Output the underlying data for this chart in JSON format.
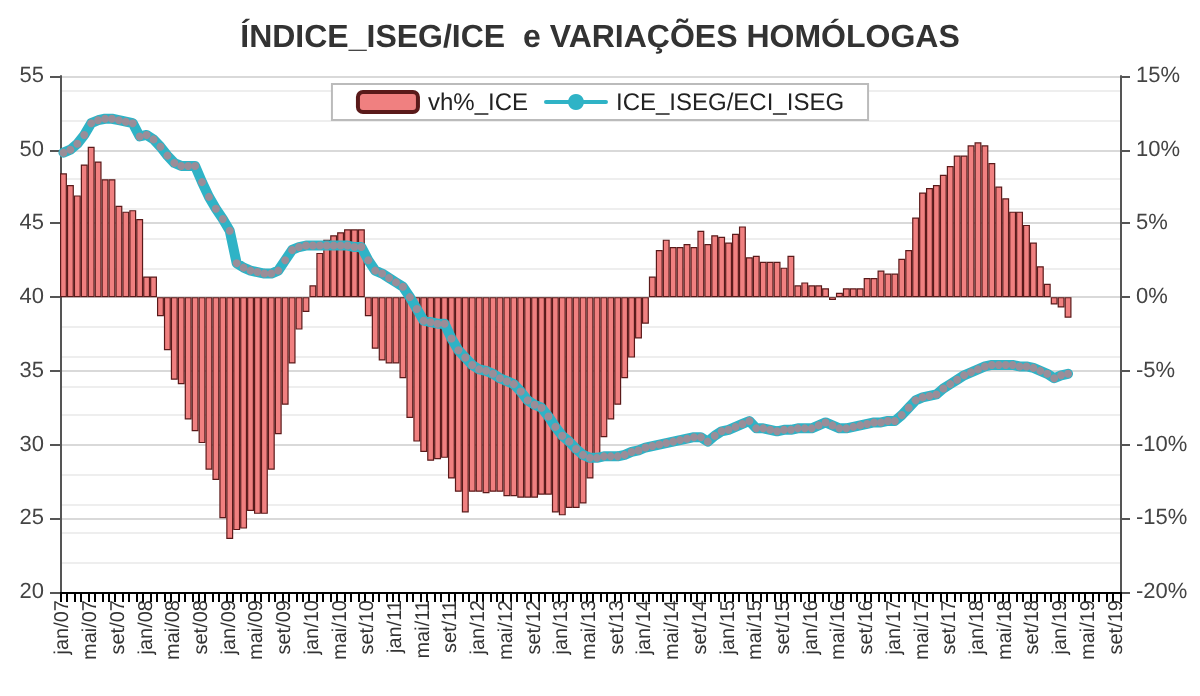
{
  "chart_data": {
    "type": "bar",
    "title": "ÍNDICE_ISEG/ICE  e VARIAÇÕES HOMÓLOGAS",
    "categories": [
      "jan/07",
      null,
      null,
      null,
      "mai/07",
      null,
      null,
      null,
      "set/07",
      null,
      null,
      null,
      "jan/08",
      null,
      null,
      null,
      "mai/08",
      null,
      null,
      null,
      "set/08",
      null,
      null,
      null,
      "jan/09",
      null,
      null,
      null,
      "mai/09",
      null,
      null,
      null,
      "set/09",
      null,
      null,
      null,
      "jan/10",
      null,
      null,
      null,
      "mai/10",
      null,
      null,
      null,
      "set/10",
      null,
      null,
      null,
      "jan/11",
      null,
      null,
      null,
      "mai/11",
      null,
      null,
      null,
      "set/11",
      null,
      null,
      null,
      "jan/12",
      null,
      null,
      null,
      "mai/12",
      null,
      null,
      null,
      "set/12",
      null,
      null,
      null,
      "jan/13",
      null,
      null,
      null,
      "mai/13",
      null,
      null,
      null,
      "set/13",
      null,
      null,
      null,
      "jan/14",
      null,
      null,
      null,
      "mai/14",
      null,
      null,
      null,
      "set/14",
      null,
      null,
      null,
      "jan/15",
      null,
      null,
      null,
      "mai/15",
      null,
      null,
      null,
      "set/15",
      null,
      null,
      null,
      "jan/16",
      null,
      null,
      null,
      "mai/16",
      null,
      null,
      null,
      "set/16",
      null,
      null,
      null,
      "jan/17",
      null,
      null,
      null,
      "mai/17",
      null,
      null,
      null,
      "set/17",
      null,
      null,
      null,
      "jan/18",
      null,
      null,
      null,
      "mai/18",
      null,
      null,
      null,
      "set/18",
      null,
      null,
      null,
      "jan/19",
      null,
      null,
      null,
      "mai/19",
      null,
      null,
      null,
      "set/19"
    ],
    "series": [
      {
        "name": "vh%_ICE",
        "axis": "y2",
        "color": "#f08080",
        "values": [
          8.4,
          7.6,
          6.9,
          9.0,
          10.2,
          9.2,
          8.0,
          8.0,
          6.2,
          5.8,
          5.9,
          5.3,
          1.4,
          1.4,
          -1.3,
          -3.6,
          -5.6,
          -5.9,
          -8.3,
          -9.1,
          -9.9,
          -11.7,
          -12.4,
          -15.0,
          -16.4,
          -15.8,
          -15.7,
          -14.5,
          -14.7,
          -14.7,
          -11.7,
          -9.3,
          -7.3,
          -4.5,
          -2.2,
          -1.0,
          0.8,
          3.0,
          3.9,
          4.2,
          4.4,
          4.6,
          4.6,
          4.6,
          -1.3,
          -3.5,
          -4.3,
          -4.5,
          -4.5,
          -5.5,
          -8.2,
          -9.8,
          -10.5,
          -11.1,
          -11.0,
          -10.9,
          -12.3,
          -13.2,
          -14.6,
          -13.2,
          -13.2,
          -13.3,
          -13.2,
          -13.2,
          -13.5,
          -13.5,
          -13.6,
          -13.6,
          -13.6,
          -13.4,
          -13.4,
          -14.6,
          -14.8,
          -14.3,
          -14.3,
          -14.0,
          -12.3,
          -11.0,
          -9.5,
          -8.3,
          -7.3,
          -5.5,
          -4.1,
          -2.8,
          -1.8,
          1.4,
          3.2,
          3.9,
          3.4,
          3.4,
          3.6,
          3.4,
          4.5,
          3.6,
          4.2,
          4.1,
          3.7,
          4.3,
          4.8,
          2.7,
          2.8,
          2.4,
          2.4,
          2.4,
          2.0,
          2.8,
          0.8,
          1.0,
          0.8,
          0.8,
          0.6,
          -0.2,
          0.3,
          0.6,
          0.6,
          0.6,
          1.3,
          1.3,
          1.8,
          1.6,
          1.6,
          2.6,
          3.2,
          5.4,
          7.1,
          7.4,
          7.6,
          8.3,
          8.9,
          9.6,
          9.6,
          10.3,
          10.5,
          10.3,
          9.1,
          7.5,
          6.7,
          5.8,
          5.8,
          4.9,
          3.7,
          2.1,
          0.9,
          -0.5,
          -0.7,
          -1.4,
          null,
          null,
          null,
          null,
          null,
          null,
          null
        ]
      },
      {
        "name": "ICE_ISEG/ECI_ISEG",
        "type": "line",
        "marker": "circle",
        "color": "#2fb3c6",
        "values": [
          49.8,
          50.0,
          50.4,
          51.0,
          51.8,
          52.0,
          52.1,
          52.1,
          52.0,
          51.9,
          51.8,
          50.9,
          51.0,
          50.7,
          50.2,
          49.6,
          49.1,
          48.9,
          48.9,
          48.9,
          47.8,
          46.8,
          46.0,
          45.3,
          44.5,
          42.3,
          42.0,
          41.8,
          41.7,
          41.6,
          41.6,
          41.8,
          42.5,
          43.2,
          43.4,
          43.5,
          43.5,
          43.5,
          43.5,
          43.5,
          43.5,
          43.5,
          43.4,
          43.4,
          42.5,
          41.8,
          41.6,
          41.3,
          41.0,
          40.7,
          40.0,
          39.2,
          38.4,
          38.3,
          38.2,
          38.2,
          37.2,
          36.4,
          35.9,
          35.4,
          35.1,
          35.0,
          34.8,
          34.5,
          34.3,
          34.1,
          33.6,
          33.0,
          32.7,
          32.5,
          31.9,
          31.2,
          30.6,
          30.2,
          29.7,
          29.3,
          29.1,
          29.1,
          29.2,
          29.2,
          29.2,
          29.3,
          29.5,
          29.6,
          29.8,
          29.9,
          30.0,
          30.1,
          30.2,
          30.3,
          30.4,
          30.5,
          30.5,
          30.2,
          30.6,
          30.9,
          31.0,
          31.2,
          31.4,
          31.6,
          31.1,
          31.1,
          31.0,
          30.9,
          31.0,
          31.0,
          31.1,
          31.1,
          31.1,
          31.3,
          31.5,
          31.3,
          31.1,
          31.1,
          31.2,
          31.3,
          31.4,
          31.5,
          31.5,
          31.6,
          31.6,
          32.0,
          32.5,
          33.0,
          33.2,
          33.3,
          33.4,
          33.8,
          34.1,
          34.4,
          34.7,
          34.9,
          35.1,
          35.3,
          35.4,
          35.4,
          35.4,
          35.4,
          35.3,
          35.3,
          35.2,
          35.0,
          34.8,
          34.5,
          34.7,
          34.8,
          null,
          null,
          null,
          null,
          null,
          null,
          null
        ]
      }
    ],
    "ylim": [
      20,
      55
    ],
    "yticks": [
      20,
      25,
      30,
      35,
      40,
      45,
      50,
      55
    ],
    "y2lim": [
      -20,
      15
    ],
    "y2ticks": [
      {
        "value": -20,
        "label": "-20%"
      },
      {
        "value": -15,
        "label": "-15%"
      },
      {
        "value": -10,
        "label": "-10%"
      },
      {
        "value": -5,
        "label": "-5%"
      },
      {
        "value": 0,
        "label": "0%"
      },
      {
        "value": 5,
        "label": "5%"
      },
      {
        "value": 10,
        "label": "10%"
      },
      {
        "value": 15,
        "label": "15%"
      }
    ],
    "grid": "y",
    "legend": "top"
  }
}
